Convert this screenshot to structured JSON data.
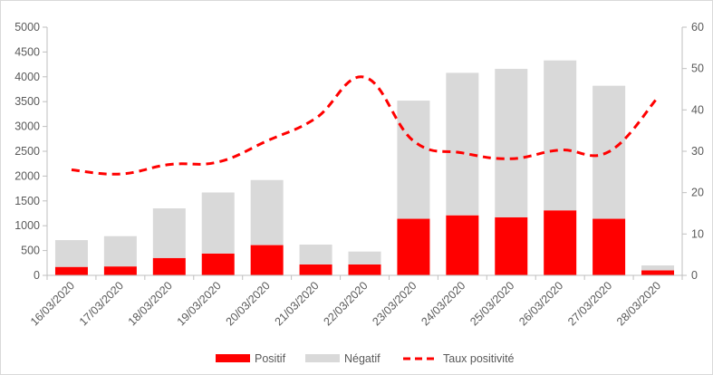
{
  "chart_data": {
    "type": "bar",
    "stacked": true,
    "categories": [
      "16/03/2020",
      "17/03/2020",
      "18/03/2020",
      "19/03/2020",
      "20/03/2020",
      "21/03/2020",
      "22/03/2020",
      "23/03/2020",
      "24/03/2020",
      "25/03/2020",
      "26/03/2020",
      "27/03/2020",
      "28/03/2020"
    ],
    "series": [
      {
        "name": "Positif",
        "type": "bar",
        "axis": "left",
        "color": "#ff0000",
        "values": [
          170,
          180,
          350,
          440,
          610,
          220,
          220,
          1140,
          1210,
          1170,
          1310,
          1140,
          100
        ]
      },
      {
        "name": "Négatif",
        "type": "bar",
        "axis": "left",
        "color": "#d9d9d9",
        "values": [
          540,
          610,
          1000,
          1230,
          1310,
          400,
          260,
          2380,
          2870,
          2990,
          3020,
          2680,
          100
        ]
      },
      {
        "name": "Taux positivité",
        "type": "line",
        "axis": "right",
        "color": "#ff0000",
        "dash": true,
        "values": [
          25.5,
          24.5,
          26.8,
          27.4,
          32.5,
          38.0,
          47.9,
          32.5,
          29.6,
          28.2,
          30.3,
          29.9,
          43.0
        ]
      }
    ],
    "y_left": {
      "min": 0,
      "max": 5000,
      "step": 500,
      "ticks": [
        "0",
        "500",
        "1000",
        "1500",
        "2000",
        "2500",
        "3000",
        "3500",
        "4000",
        "4500",
        "5000"
      ]
    },
    "y_right": {
      "min": 0,
      "max": 60,
      "step": 10,
      "ticks": [
        "0",
        "10",
        "20",
        "30",
        "40",
        "50",
        "60"
      ]
    },
    "grid": false,
    "legend_position": "bottom"
  }
}
